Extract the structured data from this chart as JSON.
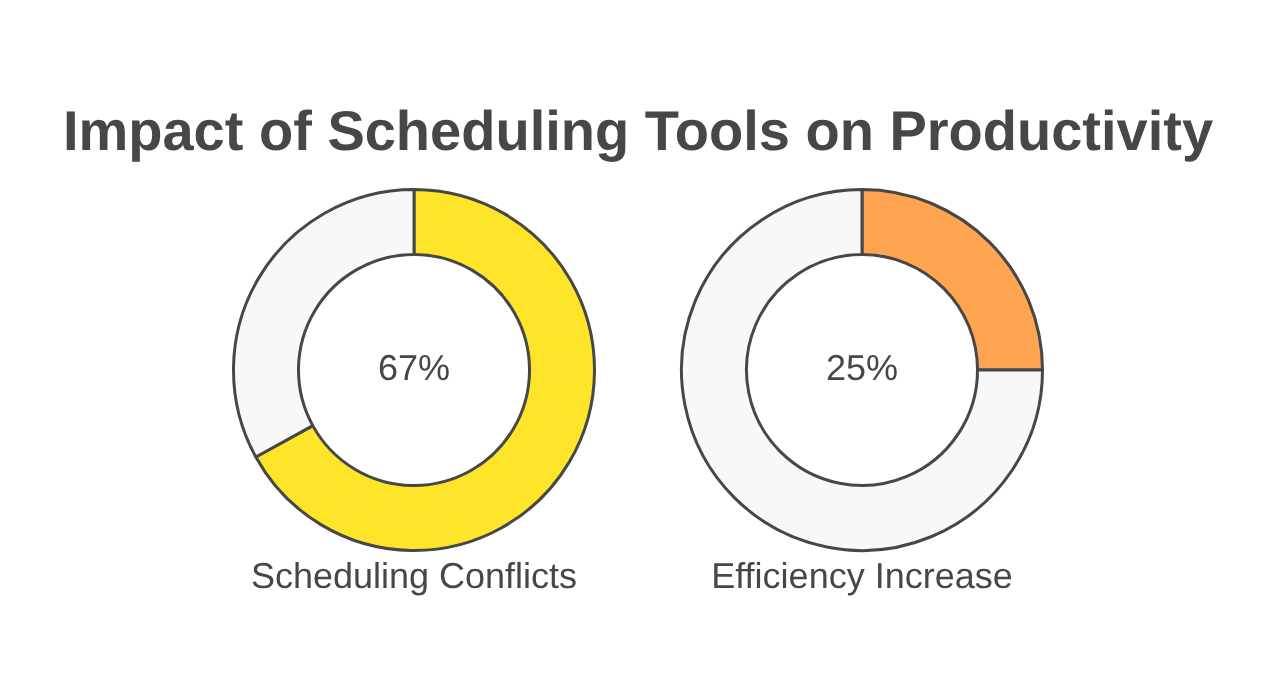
{
  "chart_data": [
    {
      "type": "donut",
      "title": "Impact of Scheduling Tools on Productivity",
      "xlabel": "Scheduling Conflicts",
      "categories": [
        null,
        null
      ],
      "values": [
        67,
        33
      ],
      "colors": [
        "#ffe52a",
        "#f8f8f8"
      ],
      "value_labels": [
        "67%",
        null
      ]
    },
    {
      "type": "donut",
      "xlabel": "Efficiency Increase",
      "categories": [
        null,
        null
      ],
      "values": [
        25,
        75
      ],
      "colors": [
        "#ffa552",
        "#f8f8f8"
      ],
      "value_labels": [
        "25%",
        null
      ]
    }
  ]
}
